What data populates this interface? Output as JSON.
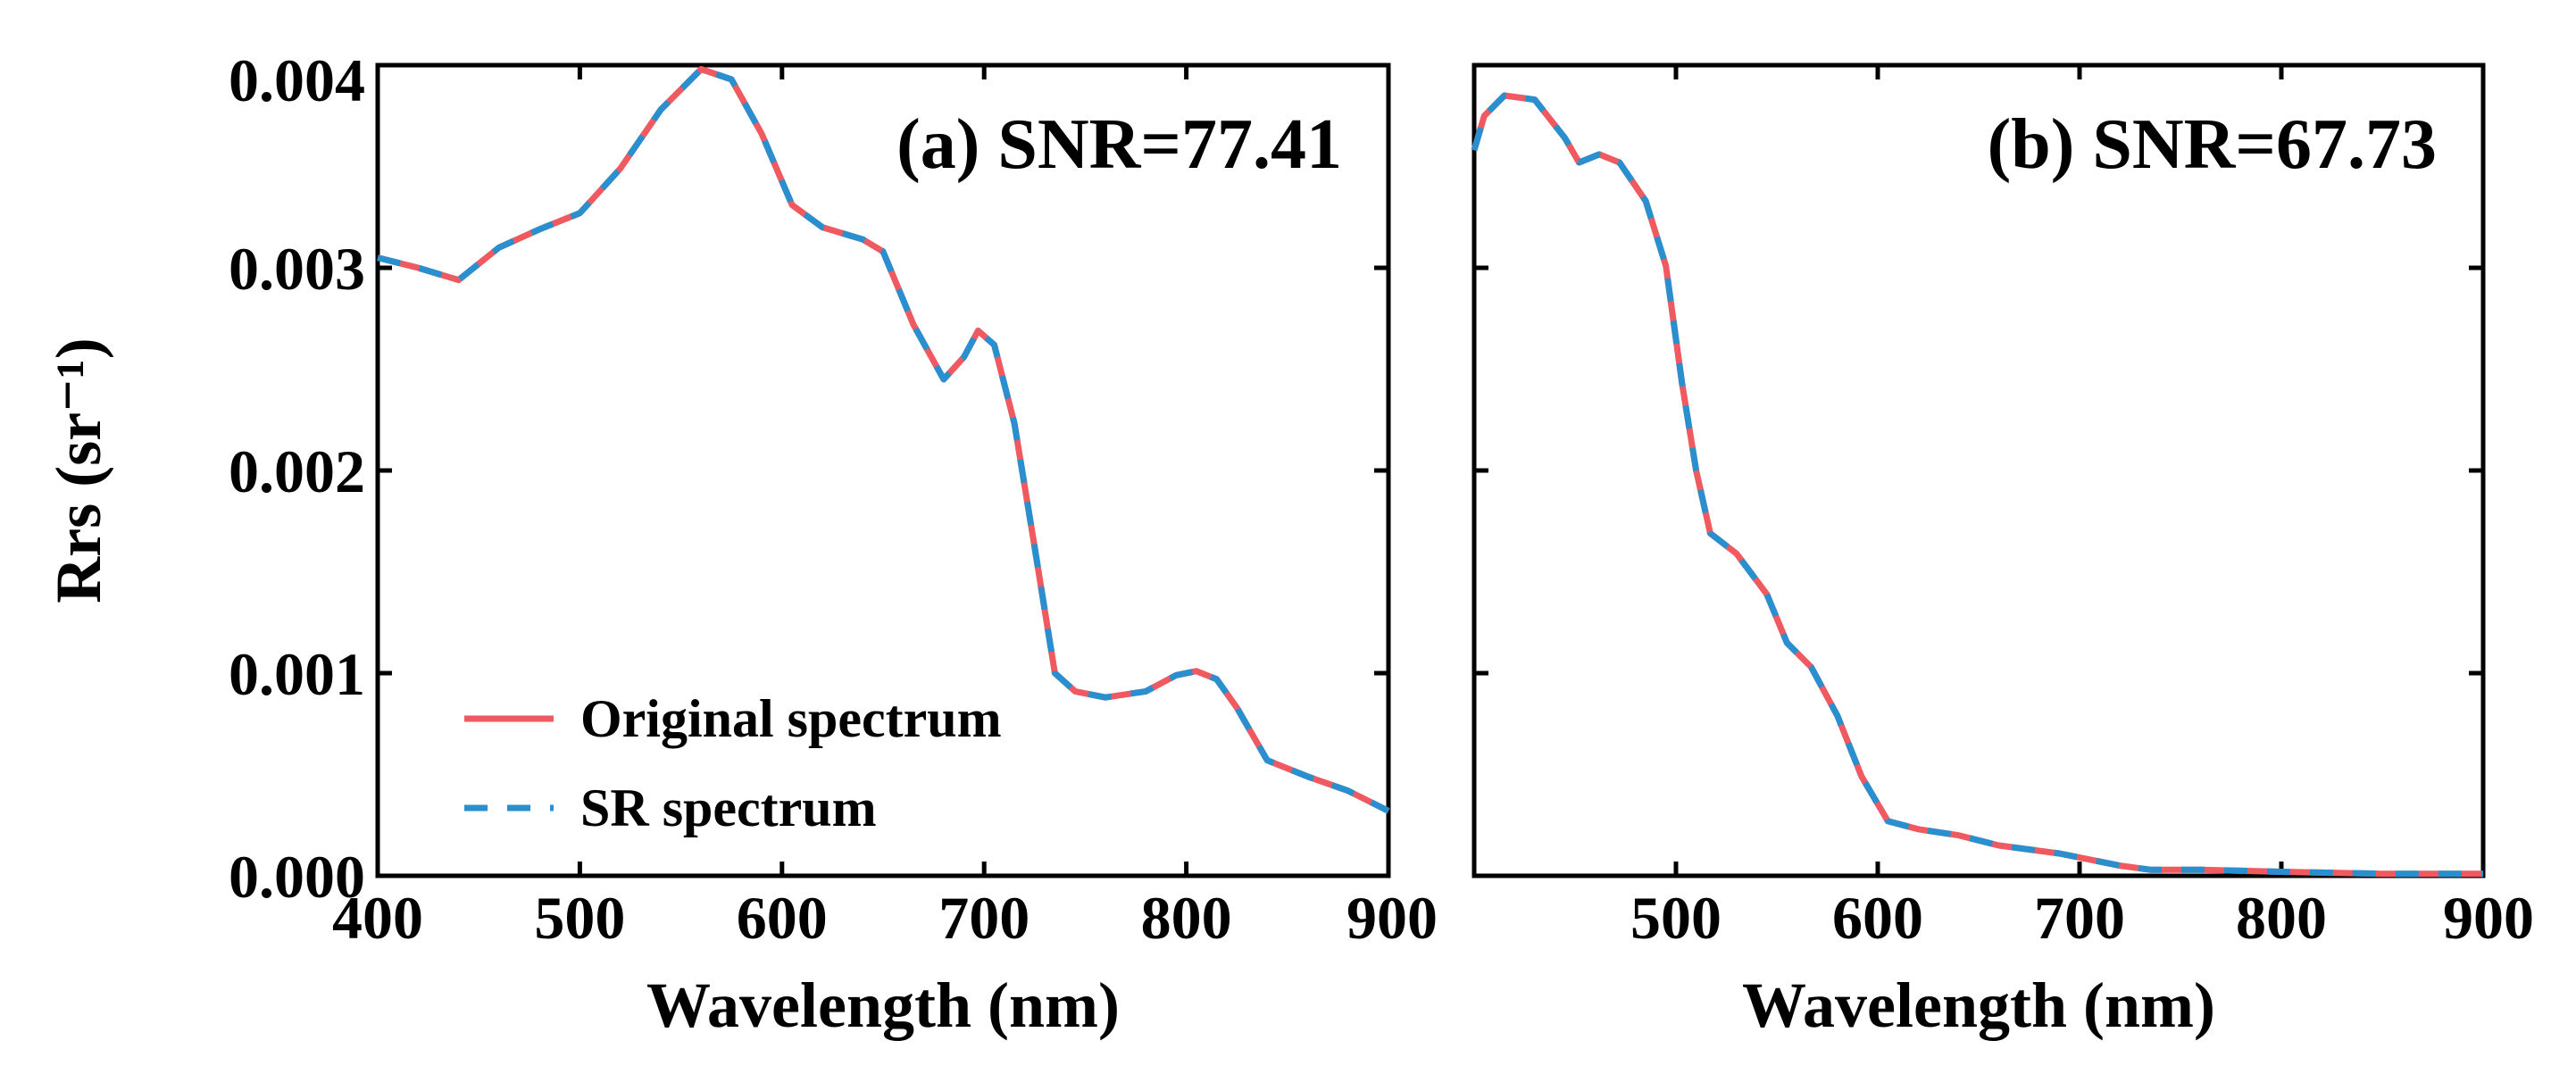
{
  "chart_data": [
    {
      "type": "line",
      "panel_title": "(a) SNR=77.41",
      "xlabel": "Wavelength (nm)",
      "ylabel": "Rrs (sr⁻¹)",
      "xlim": [
        400,
        900
      ],
      "ylim": [
        0,
        0.004
      ],
      "xticks": [
        "400",
        "500",
        "600",
        "700",
        "800",
        "900"
      ],
      "yticks": [
        "0.000",
        "0.001",
        "0.002",
        "0.003",
        "0.004"
      ],
      "grid": false,
      "legend_position": "bottom-left",
      "series": [
        {
          "name": "Original spectrum",
          "color": "#ef5a61",
          "style": "solid",
          "x": [
            400,
            420,
            440,
            460,
            480,
            500,
            520,
            540,
            560,
            575,
            590,
            605,
            620,
            640,
            650,
            665,
            680,
            690,
            697,
            705,
            715,
            725,
            735,
            745,
            760,
            780,
            795,
            805,
            815,
            825,
            840,
            860,
            880,
            900
          ],
          "y": [
            0.00305,
            0.003,
            0.00294,
            0.0031,
            0.00319,
            0.00327,
            0.00349,
            0.00378,
            0.00398,
            0.00393,
            0.00366,
            0.00331,
            0.0032,
            0.00314,
            0.00308,
            0.00272,
            0.00245,
            0.00256,
            0.00269,
            0.00262,
            0.00223,
            0.00162,
            0.001,
            0.00091,
            0.00088,
            0.00091,
            0.00099,
            0.00101,
            0.00097,
            0.00083,
            0.00057,
            0.00049,
            0.00042,
            0.00032
          ]
        },
        {
          "name": "SR spectrum",
          "color": "#2a8fce",
          "style": "dashed",
          "x": [
            400,
            420,
            440,
            460,
            480,
            500,
            520,
            540,
            560,
            575,
            590,
            605,
            620,
            640,
            650,
            665,
            680,
            690,
            697,
            705,
            715,
            725,
            735,
            745,
            760,
            780,
            795,
            805,
            815,
            825,
            840,
            860,
            880,
            900
          ],
          "y": [
            0.00305,
            0.003,
            0.00294,
            0.0031,
            0.00319,
            0.00327,
            0.00349,
            0.00378,
            0.00398,
            0.00393,
            0.00366,
            0.00331,
            0.0032,
            0.00314,
            0.00308,
            0.00272,
            0.00245,
            0.00256,
            0.00269,
            0.00262,
            0.00223,
            0.00162,
            0.001,
            0.00091,
            0.00088,
            0.00091,
            0.00099,
            0.00101,
            0.00097,
            0.00083,
            0.00057,
            0.00049,
            0.00042,
            0.00032
          ]
        }
      ]
    },
    {
      "type": "line",
      "panel_title": "(b) SNR=67.73",
      "xlabel": "Wavelength (nm)",
      "ylabel": "",
      "xlim": [
        400,
        900
      ],
      "ylim": [
        0,
        0.004
      ],
      "xticks": [
        "500",
        "600",
        "700",
        "800",
        "900"
      ],
      "yticks": [],
      "grid": false,
      "legend_position": "",
      "series": [
        {
          "name": "Original spectrum",
          "color": "#ef5a61",
          "style": "solid",
          "x": [
            400,
            405,
            415,
            430,
            445,
            452,
            462,
            472,
            485,
            495,
            503,
            510,
            517,
            530,
            545,
            555,
            567,
            580,
            592,
            605,
            620,
            640,
            660,
            690,
            720,
            735,
            760,
            800,
            850,
            900
          ],
          "y": [
            0.00358,
            0.00375,
            0.00385,
            0.00383,
            0.00364,
            0.00352,
            0.00356,
            0.00352,
            0.00333,
            0.00301,
            0.00243,
            0.002,
            0.00169,
            0.00159,
            0.00139,
            0.00115,
            0.00103,
            0.00079,
            0.00049,
            0.00027,
            0.00023,
            0.0002,
            0.00015,
            0.00011,
            5e-05,
            3e-05,
            3e-05,
            2e-05,
            1e-05,
            1e-05
          ]
        },
        {
          "name": "SR spectrum",
          "color": "#2a8fce",
          "style": "dashed",
          "x": [
            400,
            405,
            415,
            430,
            445,
            452,
            462,
            472,
            485,
            495,
            503,
            510,
            517,
            530,
            545,
            555,
            567,
            580,
            592,
            605,
            620,
            640,
            660,
            690,
            720,
            735,
            760,
            800,
            850,
            900
          ],
          "y": [
            0.00358,
            0.00375,
            0.00385,
            0.00383,
            0.00364,
            0.00352,
            0.00356,
            0.00352,
            0.00333,
            0.00301,
            0.00243,
            0.002,
            0.00169,
            0.00159,
            0.00139,
            0.00115,
            0.00103,
            0.00079,
            0.00049,
            0.00027,
            0.00023,
            0.0002,
            0.00015,
            0.00011,
            5e-05,
            3e-05,
            3e-05,
            2e-05,
            1e-05,
            1e-05
          ]
        }
      ]
    }
  ]
}
